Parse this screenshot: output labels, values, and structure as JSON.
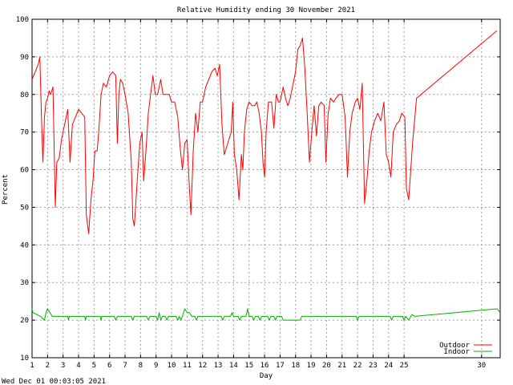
{
  "chart_data": {
    "type": "line",
    "title": "Relative Humidity ending 30 November 2021",
    "xlabel": "Day",
    "ylabel": "Percent",
    "ylim": [
      10,
      100
    ],
    "y_ticks": [
      10,
      20,
      30,
      40,
      50,
      60,
      70,
      80,
      90,
      100
    ],
    "xlim": [
      1,
      31.2
    ],
    "x_ticks": [
      "1",
      "2",
      "3",
      "4",
      "5",
      "6",
      "7",
      "8",
      "9",
      "10",
      "11",
      "12",
      "13",
      "14",
      "15",
      "16",
      "17",
      "18",
      "19",
      "20",
      "21",
      "22",
      "23",
      "24",
      "25",
      "30"
    ],
    "x_tick_positions": [
      1,
      2,
      3,
      4,
      5,
      6,
      7,
      8,
      9,
      10,
      11,
      12,
      13,
      14,
      15,
      16,
      17,
      18,
      19,
      20,
      21,
      22,
      23,
      24,
      25,
      30
    ],
    "grid": true,
    "legend_position": "bottom-right",
    "footer": "Wed Dec 01 00:03:05 2021",
    "series": [
      {
        "name": "Outdoor",
        "color": "#ff0000",
        "points": [
          [
            1.0,
            84
          ],
          [
            1.2,
            86
          ],
          [
            1.4,
            88
          ],
          [
            1.5,
            90
          ],
          [
            1.6,
            75
          ],
          [
            1.7,
            62
          ],
          [
            1.8,
            74
          ],
          [
            1.9,
            78
          ],
          [
            2.0,
            79
          ],
          [
            2.1,
            81
          ],
          [
            2.2,
            80
          ],
          [
            2.35,
            82
          ],
          [
            2.5,
            50
          ],
          [
            2.6,
            62
          ],
          [
            2.75,
            63
          ],
          [
            2.9,
            68
          ],
          [
            3.1,
            72
          ],
          [
            3.3,
            76
          ],
          [
            3.45,
            62
          ],
          [
            3.6,
            72
          ],
          [
            3.8,
            74
          ],
          [
            4.0,
            76
          ],
          [
            4.2,
            75
          ],
          [
            4.4,
            74
          ],
          [
            4.5,
            48
          ],
          [
            4.65,
            43
          ],
          [
            4.8,
            52
          ],
          [
            4.95,
            58
          ],
          [
            5.05,
            65
          ],
          [
            5.2,
            65
          ],
          [
            5.3,
            70
          ],
          [
            5.45,
            80
          ],
          [
            5.6,
            83
          ],
          [
            5.8,
            82
          ],
          [
            6.0,
            85
          ],
          [
            6.2,
            86
          ],
          [
            6.4,
            85
          ],
          [
            6.5,
            67
          ],
          [
            6.6,
            80
          ],
          [
            6.7,
            84
          ],
          [
            6.85,
            83
          ],
          [
            7.0,
            80
          ],
          [
            7.2,
            75
          ],
          [
            7.4,
            62
          ],
          [
            7.5,
            47
          ],
          [
            7.6,
            45
          ],
          [
            7.8,
            58
          ],
          [
            7.95,
            67
          ],
          [
            8.1,
            70
          ],
          [
            8.2,
            57
          ],
          [
            8.35,
            65
          ],
          [
            8.5,
            75
          ],
          [
            8.65,
            80
          ],
          [
            8.8,
            85
          ],
          [
            8.95,
            80
          ],
          [
            9.1,
            80
          ],
          [
            9.3,
            84
          ],
          [
            9.45,
            80
          ],
          [
            9.65,
            80
          ],
          [
            9.85,
            80
          ],
          [
            10.0,
            78
          ],
          [
            10.2,
            78
          ],
          [
            10.4,
            74
          ],
          [
            10.55,
            66
          ],
          [
            10.7,
            60
          ],
          [
            10.85,
            67
          ],
          [
            11.0,
            68
          ],
          [
            11.15,
            55
          ],
          [
            11.25,
            48
          ],
          [
            11.4,
            65
          ],
          [
            11.55,
            75
          ],
          [
            11.7,
            70
          ],
          [
            11.85,
            78
          ],
          [
            12.0,
            78
          ],
          [
            12.2,
            82
          ],
          [
            12.4,
            84
          ],
          [
            12.6,
            86
          ],
          [
            12.8,
            87
          ],
          [
            12.95,
            85
          ],
          [
            13.1,
            88
          ],
          [
            13.25,
            72
          ],
          [
            13.4,
            64
          ],
          [
            13.55,
            66
          ],
          [
            13.7,
            68
          ],
          [
            13.85,
            70
          ],
          [
            13.95,
            78
          ],
          [
            14.05,
            64
          ],
          [
            14.2,
            60
          ],
          [
            14.35,
            52
          ],
          [
            14.5,
            64
          ],
          [
            14.6,
            60
          ],
          [
            14.7,
            70
          ],
          [
            14.85,
            76
          ],
          [
            15.0,
            78
          ],
          [
            15.2,
            77
          ],
          [
            15.35,
            77
          ],
          [
            15.5,
            78
          ],
          [
            15.65,
            75
          ],
          [
            15.8,
            70
          ],
          [
            15.9,
            62
          ],
          [
            16.0,
            58
          ],
          [
            16.1,
            70
          ],
          [
            16.25,
            78
          ],
          [
            16.45,
            78
          ],
          [
            16.6,
            71
          ],
          [
            16.75,
            80
          ],
          [
            16.9,
            78
          ],
          [
            17.0,
            78
          ],
          [
            17.2,
            82
          ],
          [
            17.35,
            79
          ],
          [
            17.5,
            77
          ],
          [
            17.65,
            79
          ],
          [
            17.8,
            82
          ],
          [
            18.0,
            86
          ],
          [
            18.15,
            92
          ],
          [
            18.3,
            93
          ],
          [
            18.45,
            95
          ],
          [
            18.6,
            87
          ],
          [
            18.75,
            75
          ],
          [
            18.9,
            62
          ],
          [
            19.05,
            70
          ],
          [
            19.2,
            77
          ],
          [
            19.35,
            69
          ],
          [
            19.5,
            77
          ],
          [
            19.65,
            78
          ],
          [
            19.85,
            77
          ],
          [
            19.95,
            62
          ],
          [
            20.1,
            75
          ],
          [
            20.25,
            79
          ],
          [
            20.45,
            78
          ],
          [
            20.6,
            79
          ],
          [
            20.8,
            80
          ],
          [
            21.0,
            80
          ],
          [
            21.2,
            74
          ],
          [
            21.35,
            58
          ],
          [
            21.5,
            70
          ],
          [
            21.65,
            75
          ],
          [
            21.85,
            78
          ],
          [
            22.0,
            79
          ],
          [
            22.15,
            76
          ],
          [
            22.3,
            83
          ],
          [
            22.45,
            51
          ],
          [
            22.6,
            57
          ],
          [
            22.75,
            65
          ],
          [
            22.9,
            70
          ],
          [
            23.1,
            73
          ],
          [
            23.3,
            75
          ],
          [
            23.5,
            73
          ],
          [
            23.7,
            78
          ],
          [
            23.85,
            64
          ],
          [
            24.0,
            62
          ],
          [
            24.15,
            58
          ],
          [
            24.3,
            70
          ],
          [
            24.5,
            72
          ],
          [
            24.7,
            73
          ],
          [
            24.85,
            75
          ],
          [
            25.05,
            74
          ],
          [
            25.15,
            55
          ],
          [
            25.3,
            52
          ],
          [
            25.55,
            67
          ],
          [
            25.8,
            79
          ],
          [
            31.0,
            97
          ]
        ]
      },
      {
        "name": "Indoor",
        "color": "#00b000",
        "points": [
          [
            1.0,
            23
          ],
          [
            1.05,
            22
          ],
          [
            1.3,
            21.5
          ],
          [
            1.55,
            21
          ],
          [
            1.8,
            20
          ],
          [
            1.9,
            22
          ],
          [
            2.0,
            23
          ],
          [
            2.15,
            22
          ],
          [
            2.3,
            21
          ],
          [
            3.3,
            21
          ],
          [
            3.35,
            20
          ],
          [
            3.4,
            21
          ],
          [
            4.4,
            21
          ],
          [
            4.45,
            20
          ],
          [
            4.5,
            21
          ],
          [
            5.4,
            21
          ],
          [
            5.45,
            20
          ],
          [
            5.5,
            21
          ],
          [
            6.3,
            21
          ],
          [
            6.4,
            20
          ],
          [
            6.5,
            21
          ],
          [
            7.4,
            21
          ],
          [
            7.5,
            20
          ],
          [
            7.6,
            21
          ],
          [
            8.4,
            21
          ],
          [
            8.5,
            20
          ],
          [
            8.6,
            21
          ],
          [
            9.0,
            21
          ],
          [
            9.1,
            20
          ],
          [
            9.2,
            22
          ],
          [
            9.3,
            20
          ],
          [
            9.4,
            21
          ],
          [
            9.6,
            21
          ],
          [
            9.7,
            20
          ],
          [
            9.8,
            21
          ],
          [
            10.3,
            21
          ],
          [
            10.4,
            20
          ],
          [
            10.5,
            21
          ],
          [
            10.6,
            20
          ],
          [
            10.7,
            21
          ],
          [
            10.85,
            23
          ],
          [
            11.0,
            22
          ],
          [
            11.15,
            22
          ],
          [
            11.3,
            21
          ],
          [
            11.5,
            21
          ],
          [
            11.6,
            20
          ],
          [
            11.7,
            21
          ],
          [
            13.2,
            21
          ],
          [
            13.3,
            20
          ],
          [
            13.4,
            21
          ],
          [
            13.8,
            21
          ],
          [
            13.9,
            22
          ],
          [
            14.0,
            21
          ],
          [
            14.3,
            21
          ],
          [
            14.4,
            20
          ],
          [
            14.5,
            21
          ],
          [
            14.8,
            21
          ],
          [
            14.9,
            23
          ],
          [
            15.0,
            21
          ],
          [
            15.2,
            21
          ],
          [
            15.3,
            20
          ],
          [
            15.4,
            21
          ],
          [
            15.6,
            21
          ],
          [
            15.7,
            20
          ],
          [
            15.8,
            21
          ],
          [
            16.2,
            21
          ],
          [
            16.3,
            20
          ],
          [
            16.4,
            21
          ],
          [
            16.6,
            21
          ],
          [
            16.7,
            20
          ],
          [
            16.8,
            21
          ],
          [
            17.1,
            21
          ],
          [
            17.2,
            20
          ],
          [
            18.3,
            20
          ],
          [
            18.4,
            21
          ],
          [
            21.9,
            21
          ],
          [
            22.0,
            20
          ],
          [
            22.1,
            21
          ],
          [
            24.1,
            21
          ],
          [
            24.2,
            20
          ],
          [
            24.3,
            21
          ],
          [
            24.9,
            21
          ],
          [
            25.0,
            20
          ],
          [
            25.1,
            21
          ],
          [
            25.3,
            20
          ],
          [
            25.5,
            21.5
          ],
          [
            25.7,
            21
          ],
          [
            31.0,
            23
          ],
          [
            31.2,
            22
          ]
        ]
      }
    ]
  }
}
